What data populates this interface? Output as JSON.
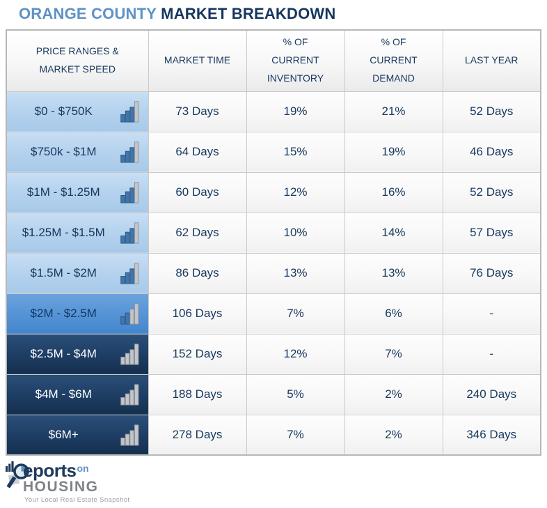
{
  "title": {
    "part1": "ORANGE COUNTY",
    "part2": "MARKET BREAKDOWN"
  },
  "colors": {
    "title_accent": "#5e92c5",
    "navy_text": "#17375e",
    "light_row_bg": "#b6d3ee",
    "medium_row_bg": "#5694d6",
    "dark_row_bg": "#1d3d63",
    "grid_line": "#c9c9c9",
    "blue_bar": "#4276ab",
    "gray_bar": "#c2c6ca"
  },
  "chart_data": {
    "type": "table",
    "title": "ORANGE COUNTY MARKET BREAKDOWN",
    "columns": [
      "PRICE RANGES &\nMARKET SPEED",
      "MARKET TIME",
      "% OF\nCURRENT\nINVENTORY",
      "% OF\nCURRENT\nDEMAND",
      "LAST YEAR"
    ],
    "rows": [
      {
        "price_range": "$0 - $750K",
        "tier": "light",
        "market_time": "73 Days",
        "pct_current_inventory": "19%",
        "pct_current_demand": "21%",
        "last_year": "52 Days"
      },
      {
        "price_range": "$750k - $1M",
        "tier": "light",
        "market_time": "64 Days",
        "pct_current_inventory": "15%",
        "pct_current_demand": "19%",
        "last_year": "46 Days"
      },
      {
        "price_range": "$1M - $1.25M",
        "tier": "light",
        "market_time": "60 Days",
        "pct_current_inventory": "12%",
        "pct_current_demand": "16%",
        "last_year": "52 Days"
      },
      {
        "price_range": "$1.25M - $1.5M",
        "tier": "light",
        "market_time": "62 Days",
        "pct_current_inventory": "10%",
        "pct_current_demand": "14%",
        "last_year": "57 Days"
      },
      {
        "price_range": "$1.5M - $2M",
        "tier": "light",
        "market_time": "86 Days",
        "pct_current_inventory": "13%",
        "pct_current_demand": "13%",
        "last_year": "76 Days"
      },
      {
        "price_range": "$2M - $2.5M",
        "tier": "medium",
        "market_time": "106 Days",
        "pct_current_inventory": "7%",
        "pct_current_demand": "6%",
        "last_year": "-"
      },
      {
        "price_range": "$2.5M - $4M",
        "tier": "dark",
        "market_time": "152 Days",
        "pct_current_inventory": "12%",
        "pct_current_demand": "7%",
        "last_year": "-"
      },
      {
        "price_range": "$4M - $6M",
        "tier": "dark",
        "market_time": "188 Days",
        "pct_current_inventory": "5%",
        "pct_current_demand": "2%",
        "last_year": "240 Days"
      },
      {
        "price_range": "$6M+",
        "tier": "dark",
        "market_time": "278 Days",
        "pct_current_inventory": "7%",
        "pct_current_demand": "2%",
        "last_year": "346 Days"
      }
    ]
  },
  "logo": {
    "brand_word1": "eports",
    "brand_word2": "on",
    "brand_word3": "HOUSING",
    "tagline": "Your Local Real Estate Snapshot"
  }
}
